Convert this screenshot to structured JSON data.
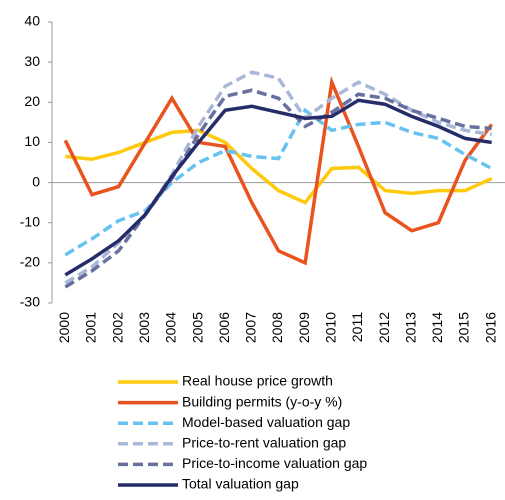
{
  "chart_data": {
    "type": "line",
    "categories": [
      "2000",
      "2001",
      "2002",
      "2003",
      "2004",
      "2005",
      "2006",
      "2007",
      "2008",
      "2009",
      "2010",
      "2011",
      "2012",
      "2013",
      "2014",
      "2015",
      "2016"
    ],
    "ylim": [
      -30,
      40
    ],
    "yticks": [
      -30,
      -20,
      -10,
      0,
      10,
      20,
      30,
      40
    ],
    "grid": false,
    "series": [
      {
        "name": "Real house price growth",
        "color": "#FFC90E",
        "dash": false,
        "values": [
          6.5,
          5.8,
          7.5,
          10,
          12.5,
          13,
          10,
          3.5,
          -2,
          -5,
          3.5,
          3.8,
          -2,
          -2.7,
          -2,
          -2,
          1
        ]
      },
      {
        "name": "Building permits (y-o-y %)",
        "color": "#E9531E",
        "dash": false,
        "values": [
          10.5,
          -3,
          -1,
          10,
          21,
          10,
          9,
          -5,
          -17,
          -20,
          25,
          9,
          -7.5,
          -12,
          -10,
          5.5,
          14.5
        ]
      },
      {
        "name": "Model-based valuation gap",
        "color": "#66C3F0",
        "dash": true,
        "values": [
          -18,
          -14,
          -9.5,
          -7,
          0,
          5,
          8,
          6.5,
          6,
          18,
          13,
          14.5,
          15,
          12.5,
          11,
          7,
          3.5
        ]
      },
      {
        "name": "Price-to-rent valuation gap",
        "color": "#A9B8D8",
        "dash": true,
        "values": [
          -25,
          -21,
          -15,
          -8,
          2,
          14,
          24,
          27.5,
          26,
          16,
          21,
          25,
          22,
          18,
          15,
          13,
          12
        ]
      },
      {
        "name": "Price-to-income valuation gap",
        "color": "#67709F",
        "dash": true,
        "values": [
          -26,
          -22,
          -17,
          -8,
          1,
          12,
          21.5,
          23,
          21,
          14,
          17.5,
          22,
          21,
          18,
          16,
          14,
          13.5
        ]
      },
      {
        "name": "Total valuation gap",
        "color": "#262C6A",
        "dash": false,
        "values": [
          -23,
          -19,
          -14.5,
          -8,
          1.5,
          10,
          18,
          19,
          17.5,
          16,
          16.5,
          20.5,
          19.5,
          16.5,
          14,
          11,
          10
        ]
      }
    ]
  }
}
